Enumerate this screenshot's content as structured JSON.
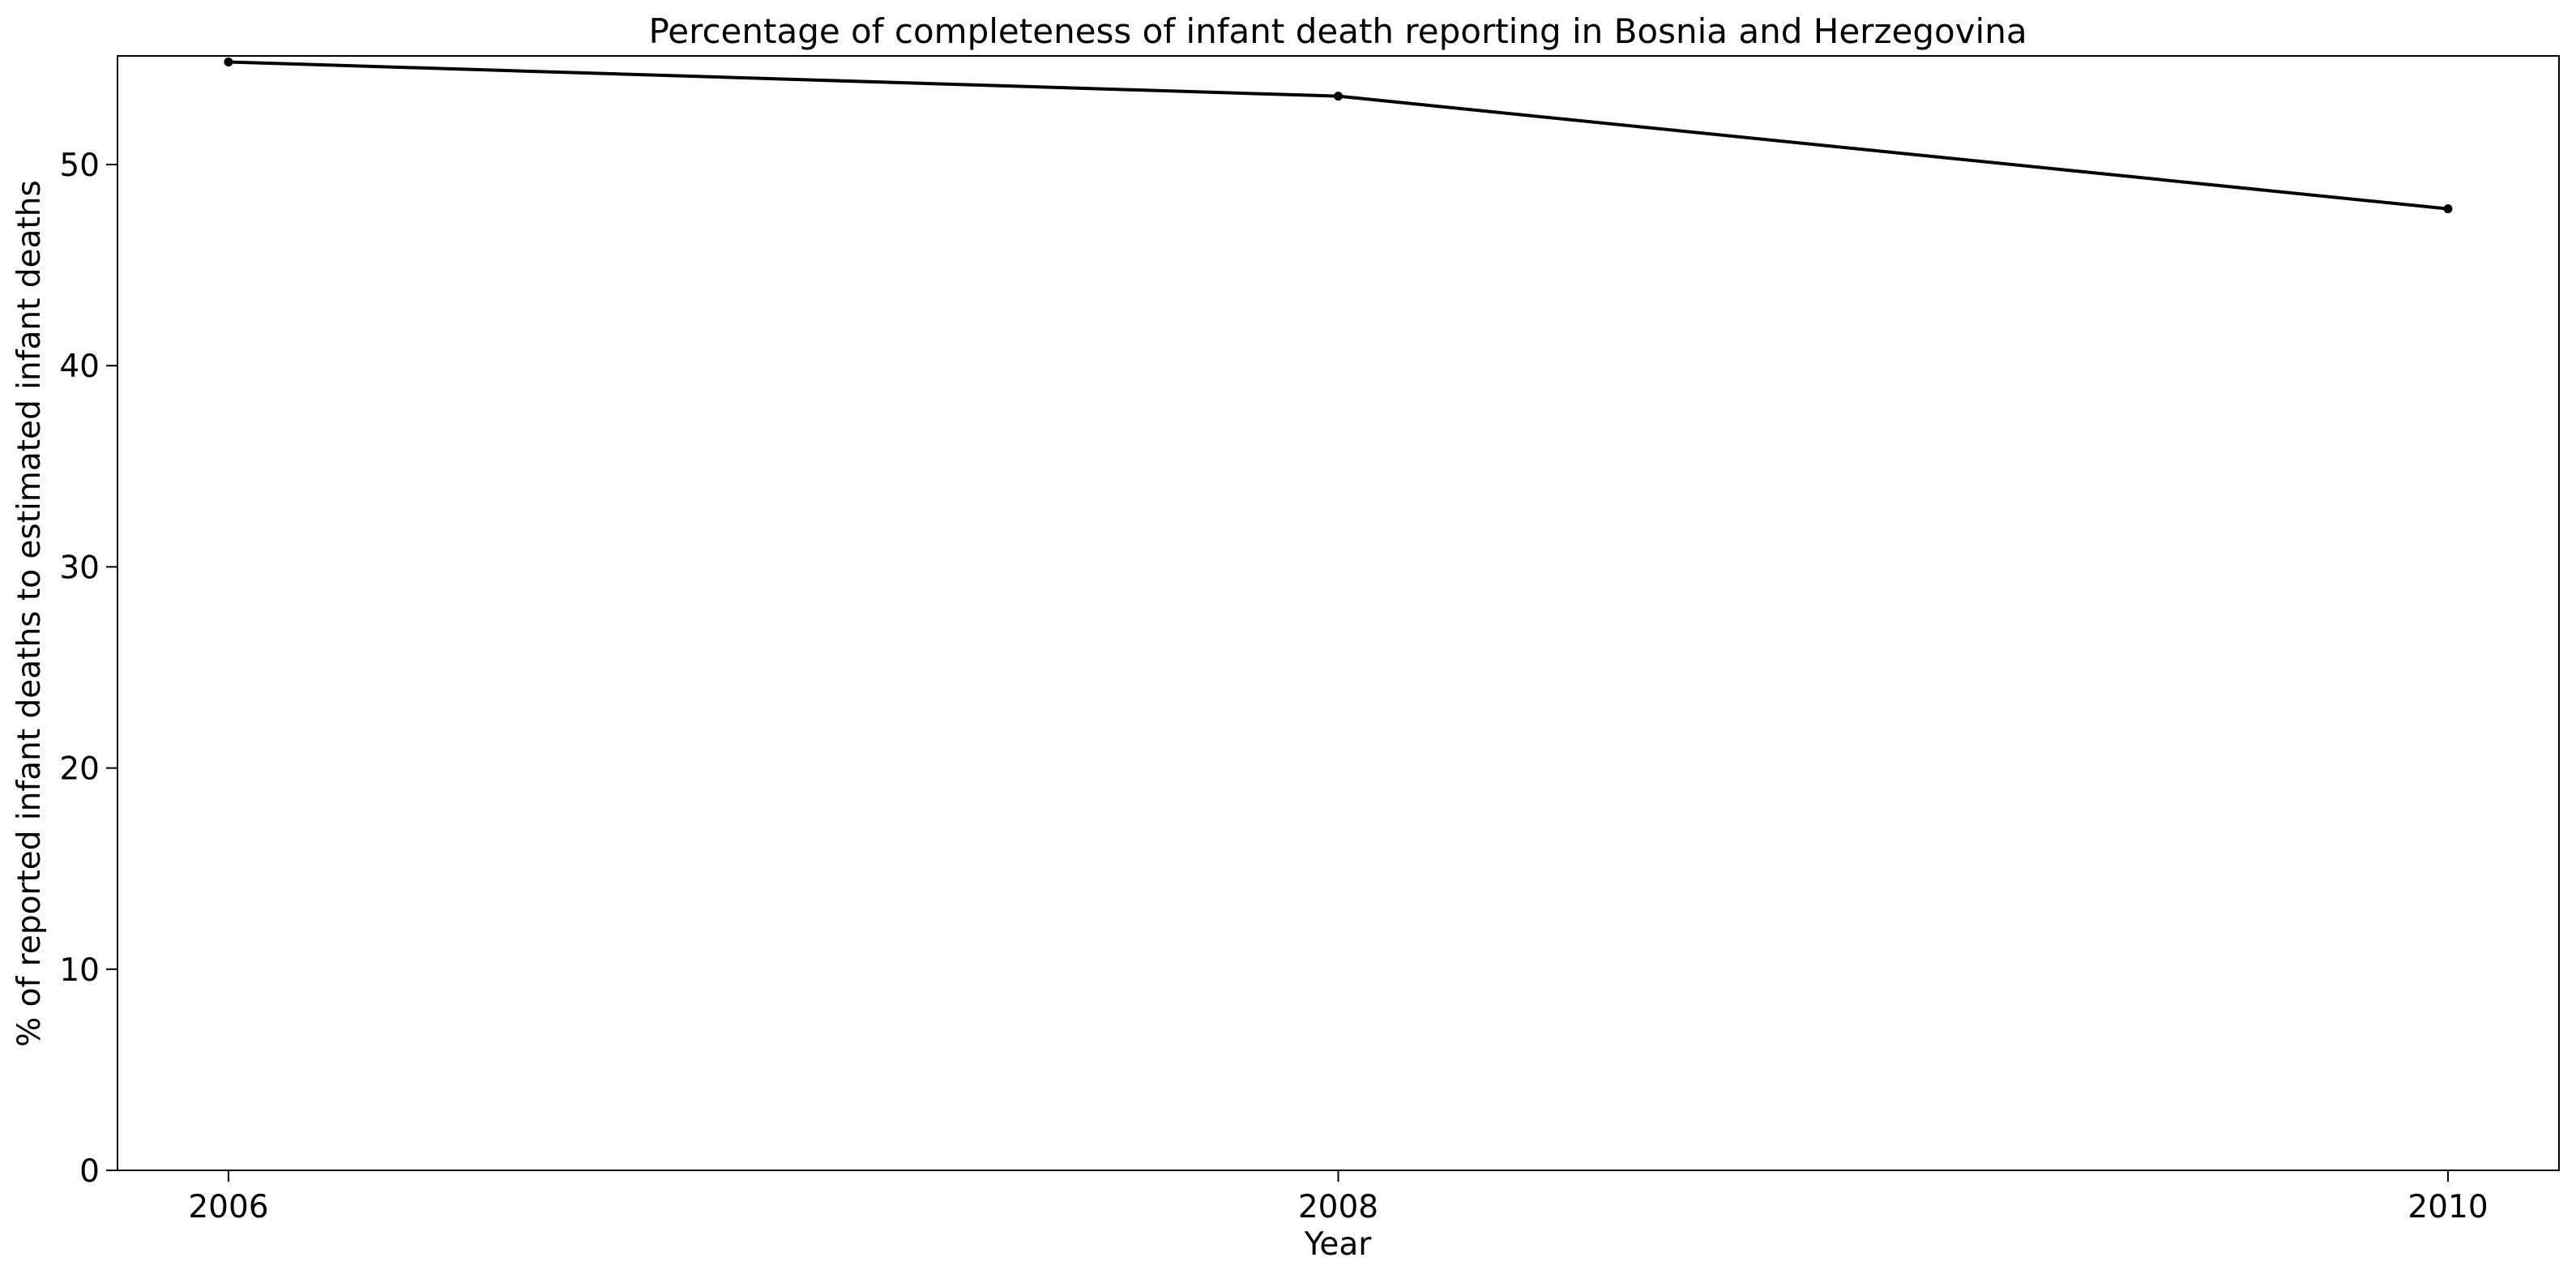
{
  "chart_data": {
    "type": "line",
    "title": "Percentage of completeness of infant death reporting in Bosnia and Herzegovina",
    "xlabel": "Year",
    "ylabel": "% of reported infant deaths to estimated infant deaths",
    "x": [
      2006,
      2008,
      2010
    ],
    "x_ticks": [
      "2006",
      "2008",
      "2010"
    ],
    "y_ticks": [
      "0",
      "10",
      "20",
      "30",
      "40",
      "50"
    ],
    "xlim": [
      2005.8,
      2010.2
    ],
    "ylim": [
      0,
      55.4
    ],
    "series": [
      {
        "values": [
          55.1,
          53.4,
          47.8
        ],
        "color": "#000000",
        "marker": "dot"
      }
    ],
    "grid": false,
    "legend": false
  }
}
